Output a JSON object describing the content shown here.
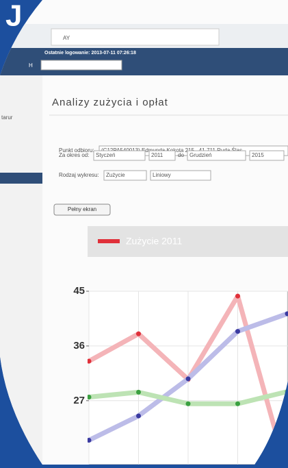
{
  "logo": "J",
  "header": {
    "tab": "AY",
    "last_login": "Ostatnie logowanie: 2013-07-11 07:26:18",
    "select": "H"
  },
  "sidebar": {
    "item": "tarur"
  },
  "page": {
    "title": "Analizy zużycia i opłat",
    "form": {
      "point_label": "Punkt odbioru:",
      "point_value": "(C12PA540013) Edmunda Kokota 215 , 41-711 Ruda Śląs",
      "period_label": "Za okres od:",
      "from_month": "Styczeń",
      "from_year": "2011",
      "to_label": "do",
      "to_month": "Grudzień",
      "to_year": "2015",
      "chart_type_label": "Rodzaj wykresu:",
      "chart_kind": "Zużycie",
      "chart_style": "Liniowy"
    },
    "fullscreen_button": "Pełny ekran"
  },
  "chart_data": {
    "type": "line",
    "categories": [
      null,
      null,
      null,
      null,
      null
    ],
    "series": [
      {
        "name": "Zużycie 2011",
        "color": "#e0303a",
        "line_color": "#f4b4b8",
        "values": [
          33.5,
          38,
          30.5,
          44.2,
          15
        ]
      },
      {
        "color": "#3a3aa0",
        "line_color": "#bcbce8",
        "values": [
          20.5,
          24.5,
          30.6,
          38.4,
          41.3
        ]
      },
      {
        "color": "#3aa040",
        "line_color": "#bde3b4",
        "values": [
          27.6,
          28.4,
          26.5,
          26.5,
          28.5
        ]
      }
    ],
    "ylim": [
      16.5,
      45
    ],
    "yticks": [
      27,
      36,
      45
    ],
    "grid": true
  }
}
